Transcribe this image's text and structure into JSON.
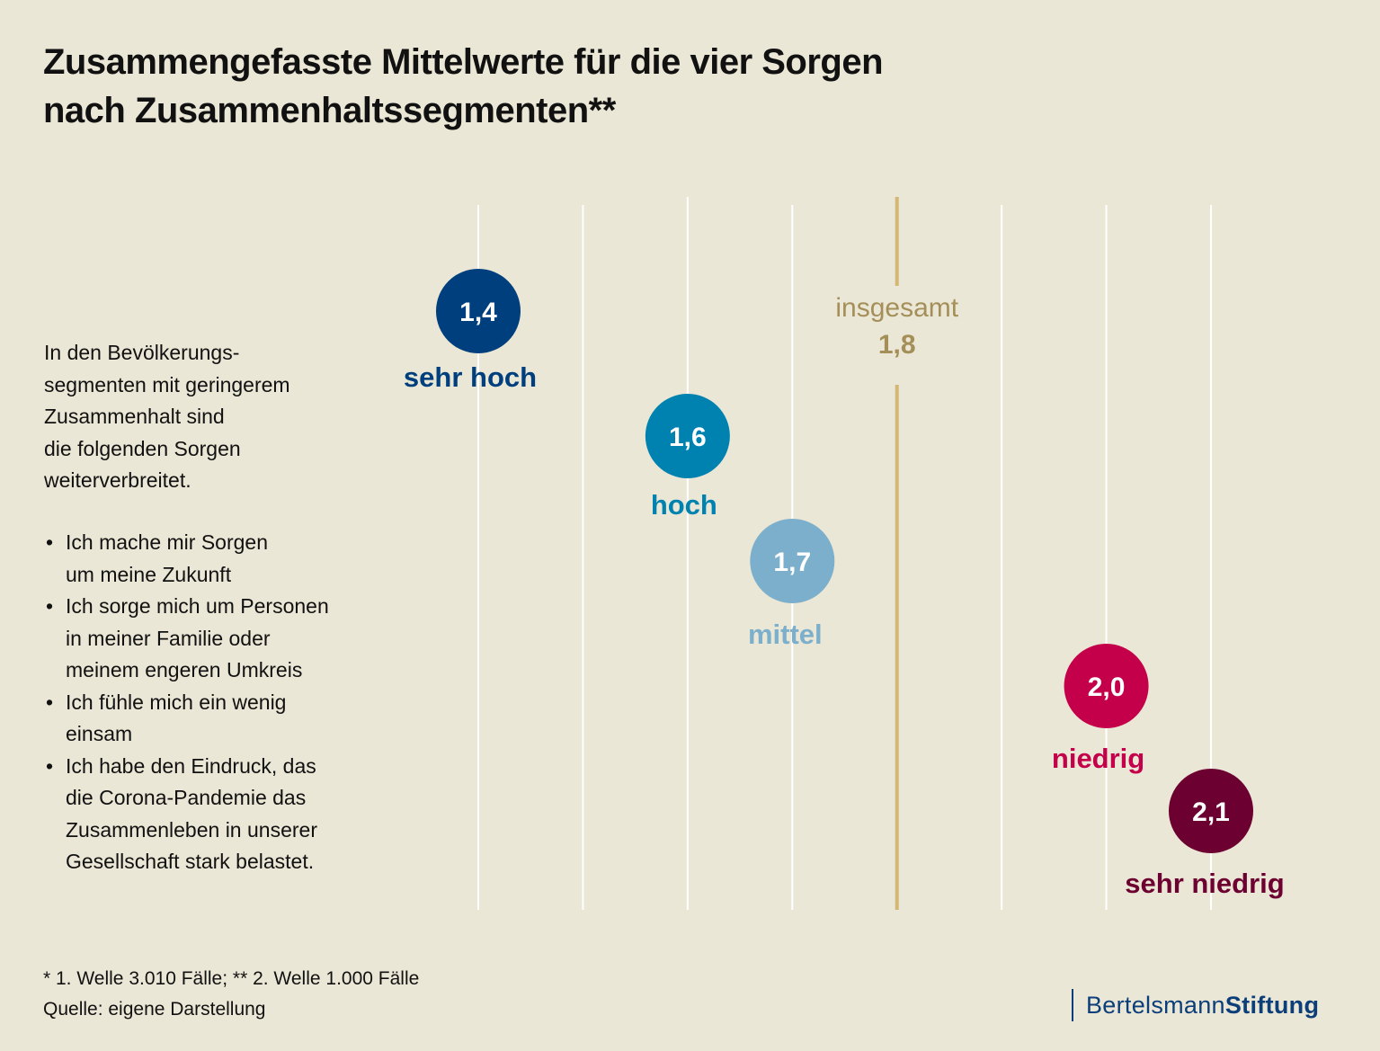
{
  "title": {
    "line1": "Zusammengefasste Mittelwerte für die vier Sorgen",
    "line2": "nach Zusammenhaltssegmenten**"
  },
  "intro": {
    "lines": [
      "In den Bevölkerungs-",
      "segmenten mit geringerem",
      "Zusammenhalt sind",
      "die folgenden Sorgen",
      "weiterverbreitet."
    ]
  },
  "bullets": [
    {
      "lines": [
        "Ich mache mir Sorgen",
        "um meine Zukunft"
      ]
    },
    {
      "lines": [
        "Ich sorge mich um Personen",
        "in meiner Familie oder",
        "meinem engeren Umkreis"
      ]
    },
    {
      "lines": [
        "Ich fühle mich ein wenig",
        "einsam"
      ]
    },
    {
      "lines": [
        "Ich habe den Eindruck, das",
        "die Corona-Pandemie das",
        "Zusammenleben in unserer",
        "Gesellschaft stark belastet."
      ]
    }
  ],
  "bullet_glyph": "•",
  "chart_data": {
    "type": "scatter",
    "title": "Zusammengefasste Mittelwerte für die vier Sorgen nach Zusammenhaltssegmenten**",
    "xlabel": "",
    "ylabel": "",
    "xlim": [
      1.4,
      2.1
    ],
    "grid_values": [
      1.4,
      1.5,
      1.6,
      1.7,
      1.8,
      1.9,
      2.0,
      2.1
    ],
    "grid": true,
    "points": [
      {
        "segment": "sehr hoch",
        "value": 1.4,
        "label": "1,4",
        "color": "#003f7d"
      },
      {
        "segment": "hoch",
        "value": 1.6,
        "label": "1,6",
        "color": "#0082b1"
      },
      {
        "segment": "mittel",
        "value": 1.7,
        "label": "1,7",
        "color": "#7bafcb"
      },
      {
        "segment": "niedrig",
        "value": 2.0,
        "label": "2,0",
        "color": "#c4004a"
      },
      {
        "segment": "sehr niedrig",
        "value": 2.1,
        "label": "2,1",
        "color": "#6c0030"
      }
    ],
    "reference": {
      "label": "insgesamt",
      "value": 1.8,
      "value_label": "1,8",
      "color": "#d2b873",
      "text_color": "#a58f58"
    }
  },
  "colors": {
    "background": "#ebe7d6",
    "gridline": "#ffffff",
    "logo": "#0c3f7a"
  },
  "footnote": {
    "line1": "* 1. Welle 3.010 Fälle; ** 2. Welle 1.000 Fälle",
    "line2": "Quelle: eigene Darstellung"
  },
  "logo": {
    "part1": "Bertelsmann",
    "part2": "Stiftung"
  }
}
